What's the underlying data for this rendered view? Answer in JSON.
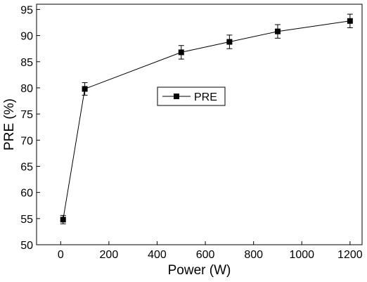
{
  "chart_data": {
    "type": "line",
    "xlabel": "Power (W)",
    "ylabel": "PRE (%)",
    "xlim": [
      -100,
      1250
    ],
    "ylim": [
      50,
      96
    ],
    "xticks": [
      0,
      200,
      400,
      600,
      800,
      1000,
      1200
    ],
    "yticks": [
      50,
      55,
      60,
      65,
      70,
      75,
      80,
      85,
      90,
      95
    ],
    "grid": false,
    "legend_position": "center",
    "series": [
      {
        "name": "PRE",
        "color": "#000000",
        "marker": "square",
        "x": [
          10,
          100,
          500,
          700,
          900,
          1200
        ],
        "y": [
          54.8,
          79.8,
          86.8,
          88.8,
          90.8,
          92.8
        ],
        "error": [
          0.8,
          1.2,
          1.3,
          1.3,
          1.3,
          1.3
        ]
      }
    ]
  }
}
